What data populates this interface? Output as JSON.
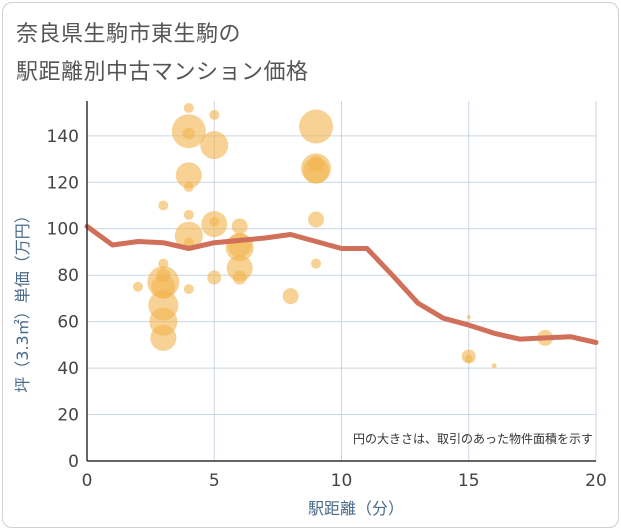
{
  "title_lines": [
    "奈良県生駒市東生駒の",
    "駅距離別中古マンション価格"
  ],
  "chart_data": {
    "type": "scatter",
    "title": "奈良県生駒市東生駒の駅距離別中古マンション価格",
    "xlabel": "駅距離（分）",
    "ylabel": "坪（3.3㎡）単価（万円）",
    "xlim": [
      0,
      20
    ],
    "ylim": [
      0,
      155
    ],
    "x_ticks": [
      0,
      5,
      10,
      15,
      20
    ],
    "y_ticks": [
      0,
      20,
      40,
      60,
      80,
      100,
      120,
      140
    ],
    "x_tick_labels": [
      "0",
      "5",
      "10",
      "15",
      "20"
    ],
    "y_tick_labels": [
      "0",
      "20",
      "40",
      "60",
      "80",
      "100",
      "120",
      "140"
    ],
    "grid": true,
    "note": "円の大きさは、取引のあった物件面積を示す",
    "colors": {
      "bubble": "#f2b44c",
      "line": "#d0705a",
      "grid": "#c9d6e3",
      "axis": "#333333"
    },
    "bubbles": [
      {
        "x": 2,
        "y": 75,
        "size": 5
      },
      {
        "x": 3,
        "y": 110,
        "size": 5
      },
      {
        "x": 3,
        "y": 85,
        "size": 5
      },
      {
        "x": 3,
        "y": 80,
        "size": 7
      },
      {
        "x": 3,
        "y": 77,
        "size": 16
      },
      {
        "x": 3,
        "y": 75,
        "size": 12
      },
      {
        "x": 3,
        "y": 67,
        "size": 15
      },
      {
        "x": 3,
        "y": 60,
        "size": 14
      },
      {
        "x": 3,
        "y": 53,
        "size": 13
      },
      {
        "x": 4,
        "y": 152,
        "size": 5
      },
      {
        "x": 4,
        "y": 142,
        "size": 17
      },
      {
        "x": 4,
        "y": 141,
        "size": 6
      },
      {
        "x": 4,
        "y": 123,
        "size": 13
      },
      {
        "x": 4,
        "y": 118,
        "size": 5
      },
      {
        "x": 4,
        "y": 106,
        "size": 5
      },
      {
        "x": 4,
        "y": 97,
        "size": 14
      },
      {
        "x": 4,
        "y": 94,
        "size": 5
      },
      {
        "x": 4,
        "y": 74,
        "size": 5
      },
      {
        "x": 5,
        "y": 149,
        "size": 5
      },
      {
        "x": 5,
        "y": 136,
        "size": 14
      },
      {
        "x": 5,
        "y": 102,
        "size": 13
      },
      {
        "x": 5,
        "y": 103,
        "size": 5
      },
      {
        "x": 5,
        "y": 79,
        "size": 7
      },
      {
        "x": 6,
        "y": 101,
        "size": 8
      },
      {
        "x": 6,
        "y": 93,
        "size": 12
      },
      {
        "x": 6,
        "y": 92,
        "size": 14
      },
      {
        "x": 6,
        "y": 83,
        "size": 13
      },
      {
        "x": 6,
        "y": 79,
        "size": 7
      },
      {
        "x": 8,
        "y": 71,
        "size": 8
      },
      {
        "x": 9,
        "y": 144,
        "size": 17
      },
      {
        "x": 9,
        "y": 126,
        "size": 15
      },
      {
        "x": 9,
        "y": 125,
        "size": 13
      },
      {
        "x": 9,
        "y": 128,
        "size": 8
      },
      {
        "x": 9,
        "y": 104,
        "size": 8
      },
      {
        "x": 9,
        "y": 85,
        "size": 5
      },
      {
        "x": 15,
        "y": 45,
        "size": 7
      },
      {
        "x": 15,
        "y": 44,
        "size": 4
      },
      {
        "x": 15,
        "y": 62,
        "size": 2
      },
      {
        "x": 16,
        "y": 41,
        "size": 2.5
      },
      {
        "x": 18,
        "y": 53,
        "size": 8
      }
    ],
    "trend_line": {
      "x": [
        0,
        1,
        2,
        3,
        4,
        5,
        6,
        7,
        8,
        9,
        10,
        11,
        12,
        13,
        14,
        15,
        16,
        17,
        18,
        19,
        20
      ],
      "y": [
        101,
        93,
        94.5,
        94,
        91.5,
        94,
        95,
        96,
        97.5,
        94.5,
        91.5,
        91.5,
        80,
        68,
        61.5,
        58.5,
        55,
        52.5,
        53,
        53.5,
        51
      ]
    }
  }
}
